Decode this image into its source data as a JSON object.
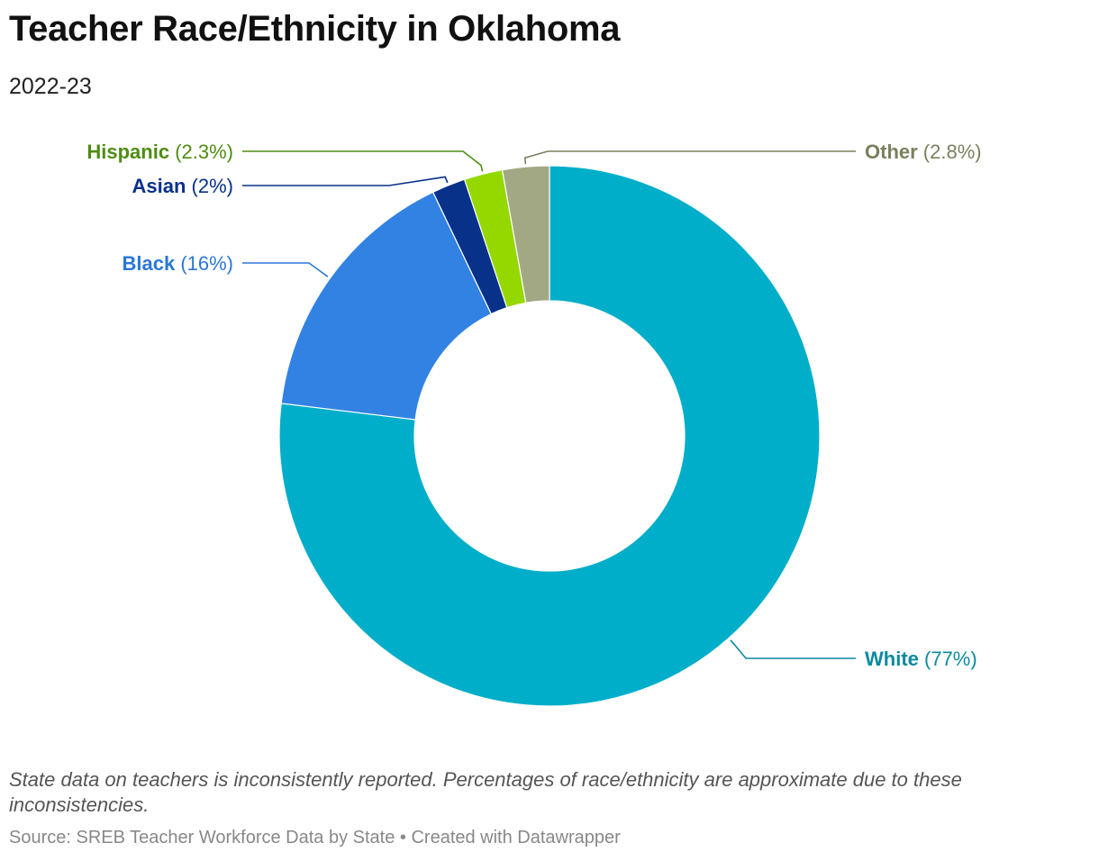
{
  "header": {
    "title": "Teacher Race/Ethnicity in Oklahoma",
    "subtitle": "2022-23"
  },
  "chart_data": {
    "type": "pie",
    "variant": "donut",
    "title": "Teacher Race/Ethnicity in Oklahoma",
    "subtitle": "2022-23",
    "slices": [
      {
        "name": "White",
        "value": 77,
        "label": "(77%)",
        "color": "#00aec9",
        "label_color": "#0a8aa0"
      },
      {
        "name": "Black",
        "value": 16,
        "label": "(16%)",
        "color": "#3182e3",
        "label_color": "#2a78d8"
      },
      {
        "name": "Asian",
        "value": 2,
        "label": "(2%)",
        "color": "#08318a",
        "label_color": "#08318a"
      },
      {
        "name": "Hispanic",
        "value": 2.3,
        "label": "(2.3%)",
        "color": "#94d800",
        "label_color": "#4e8c13"
      },
      {
        "name": "Other",
        "value": 2.8,
        "label": "(2.8%)",
        "color": "#a3a884",
        "label_color": "#7b7f5c"
      }
    ]
  },
  "footer": {
    "note": "State data on teachers is inconsistently reported. Percentages of race/ethnicity are approximate due to these inconsistencies.",
    "source": "Source: SREB Teacher Workforce Data by State • Created with Datawrapper"
  }
}
